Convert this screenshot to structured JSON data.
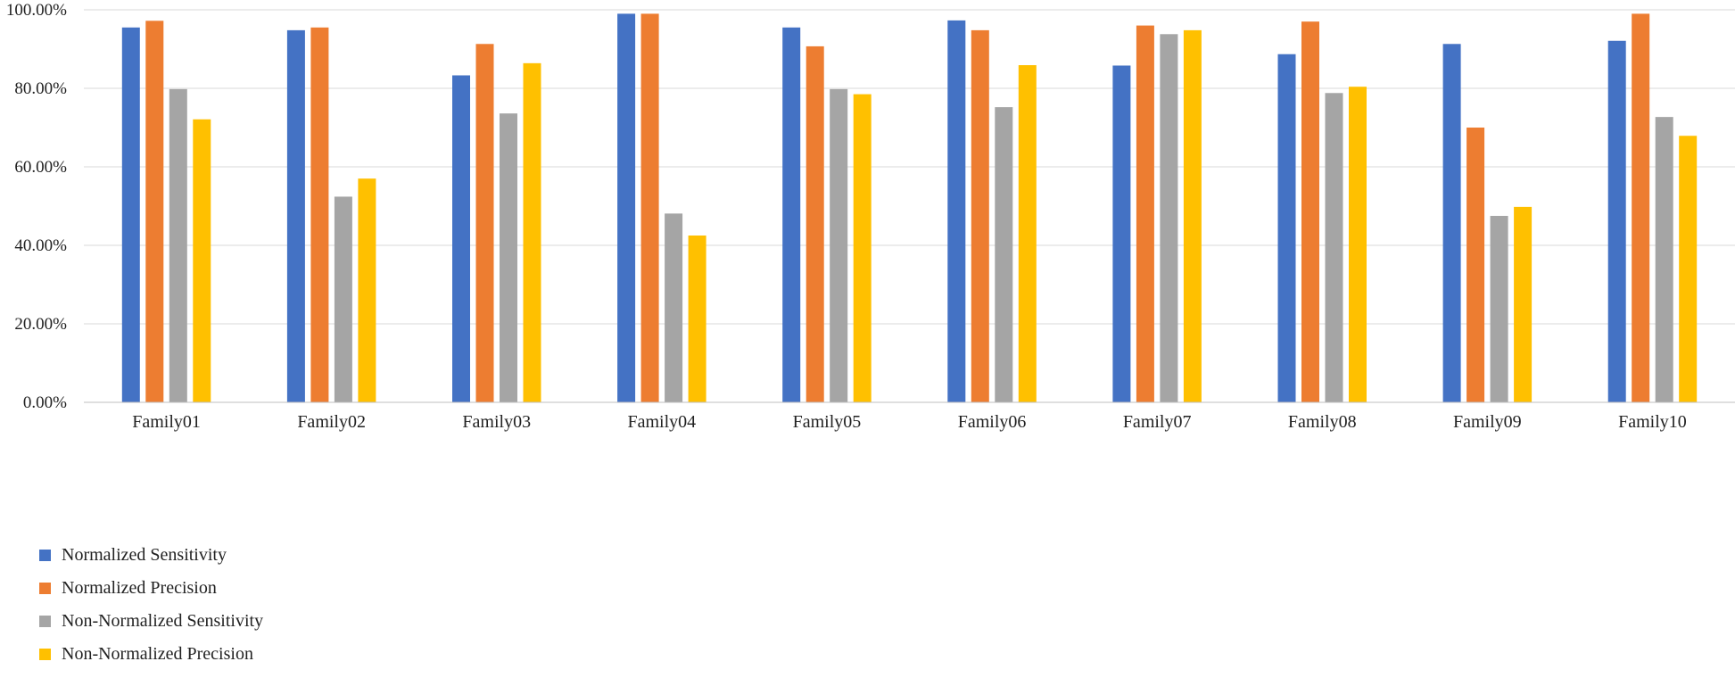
{
  "chart_data": {
    "type": "bar",
    "title": "",
    "xlabel": "",
    "ylabel": "",
    "ylim": [
      0,
      100
    ],
    "yticks": [
      "0.00%",
      "20.00%",
      "40.00%",
      "60.00%",
      "80.00%",
      "100.00%"
    ],
    "ytick_values": [
      0,
      20,
      40,
      60,
      80,
      100
    ],
    "grid": true,
    "legend_position": "bottom-left",
    "categories": [
      "Family01",
      "Family02",
      "Family03",
      "Family04",
      "Family05",
      "Family06",
      "Family07",
      "Family08",
      "Family09",
      "Family10"
    ],
    "series": [
      {
        "name": "Normalized Sensitivity",
        "color": "#4472C4",
        "values": [
          95.5,
          94.8,
          83.3,
          99.0,
          95.5,
          97.3,
          85.8,
          88.7,
          91.3,
          92.1
        ]
      },
      {
        "name": "Normalized Precision",
        "color": "#ED7D31",
        "values": [
          97.2,
          95.5,
          91.3,
          99.0,
          90.7,
          94.8,
          96.0,
          97.0,
          70.0,
          99.0
        ]
      },
      {
        "name": "Non-Normalized Sensitivity",
        "color": "#A5A5A5",
        "values": [
          79.8,
          52.4,
          73.6,
          48.1,
          79.8,
          75.2,
          93.8,
          78.8,
          47.5,
          72.7
        ]
      },
      {
        "name": "Non-Normalized Precision",
        "color": "#FFC000",
        "values": [
          72.1,
          57.0,
          86.4,
          42.5,
          78.5,
          85.9,
          94.8,
          80.4,
          49.8,
          67.9
        ]
      }
    ]
  }
}
